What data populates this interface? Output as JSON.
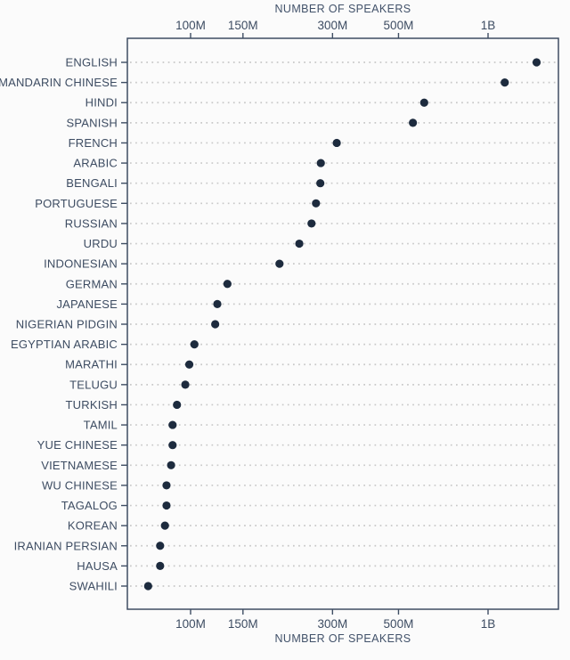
{
  "chart_data": {
    "type": "scatter",
    "subtype": "dot-plot",
    "title": "",
    "axis_label_top": "NUMBER OF SPEAKERS",
    "axis_label_bottom": "NUMBER OF SPEAKERS",
    "x_scale": "log",
    "x_unit": "speakers",
    "x_domain_millions": [
      61.3,
      1724
    ],
    "x_ticks": [
      {
        "value_millions": 100,
        "label": "100M"
      },
      {
        "value_millions": 150,
        "label": "150M"
      },
      {
        "value_millions": 300,
        "label": "300M"
      },
      {
        "value_millions": 500,
        "label": "500M"
      },
      {
        "value_millions": 1000,
        "label": "1B"
      }
    ],
    "grid": "dotted-row-leaders",
    "legend": "none",
    "points": [
      {
        "label": "ENGLISH",
        "value_millions": 1456
      },
      {
        "label": "MANDARIN CHINESE",
        "value_millions": 1138
      },
      {
        "label": "HINDI",
        "value_millions": 610
      },
      {
        "label": "SPANISH",
        "value_millions": 559
      },
      {
        "label": "FRENCH",
        "value_millions": 310
      },
      {
        "label": "ARABIC",
        "value_millions": 274
      },
      {
        "label": "BENGALI",
        "value_millions": 273
      },
      {
        "label": "PORTUGUESE",
        "value_millions": 264
      },
      {
        "label": "RUSSIAN",
        "value_millions": 255
      },
      {
        "label": "URDU",
        "value_millions": 232
      },
      {
        "label": "INDONESIAN",
        "value_millions": 199
      },
      {
        "label": "GERMAN",
        "value_millions": 133
      },
      {
        "label": "JAPANESE",
        "value_millions": 123
      },
      {
        "label": "NIGERIAN PIDGIN",
        "value_millions": 121
      },
      {
        "label": "EGYPTIAN ARABIC",
        "value_millions": 103
      },
      {
        "label": "MARATHI",
        "value_millions": 99
      },
      {
        "label": "TELUGU",
        "value_millions": 96
      },
      {
        "label": "TURKISH",
        "value_millions": 90
      },
      {
        "label": "TAMIL",
        "value_millions": 87
      },
      {
        "label": "YUE CHINESE",
        "value_millions": 87
      },
      {
        "label": "VIETNAMESE",
        "value_millions": 86
      },
      {
        "label": "WU CHINESE",
        "value_millions": 83
      },
      {
        "label": "TAGALOG",
        "value_millions": 83
      },
      {
        "label": "KOREAN",
        "value_millions": 82
      },
      {
        "label": "IRANIAN PERSIAN",
        "value_millions": 79
      },
      {
        "label": "HAUSA",
        "value_millions": 79
      },
      {
        "label": "SWAHILI",
        "value_millions": 72
      }
    ]
  },
  "colors": {
    "dot": "#1d2b3e",
    "label_text": "#3d4c62",
    "tick_text": "#3d4c62",
    "axis_line": "#3e4d63",
    "leader_dots": "#c8c8c8",
    "background": "#fbfbfb"
  }
}
